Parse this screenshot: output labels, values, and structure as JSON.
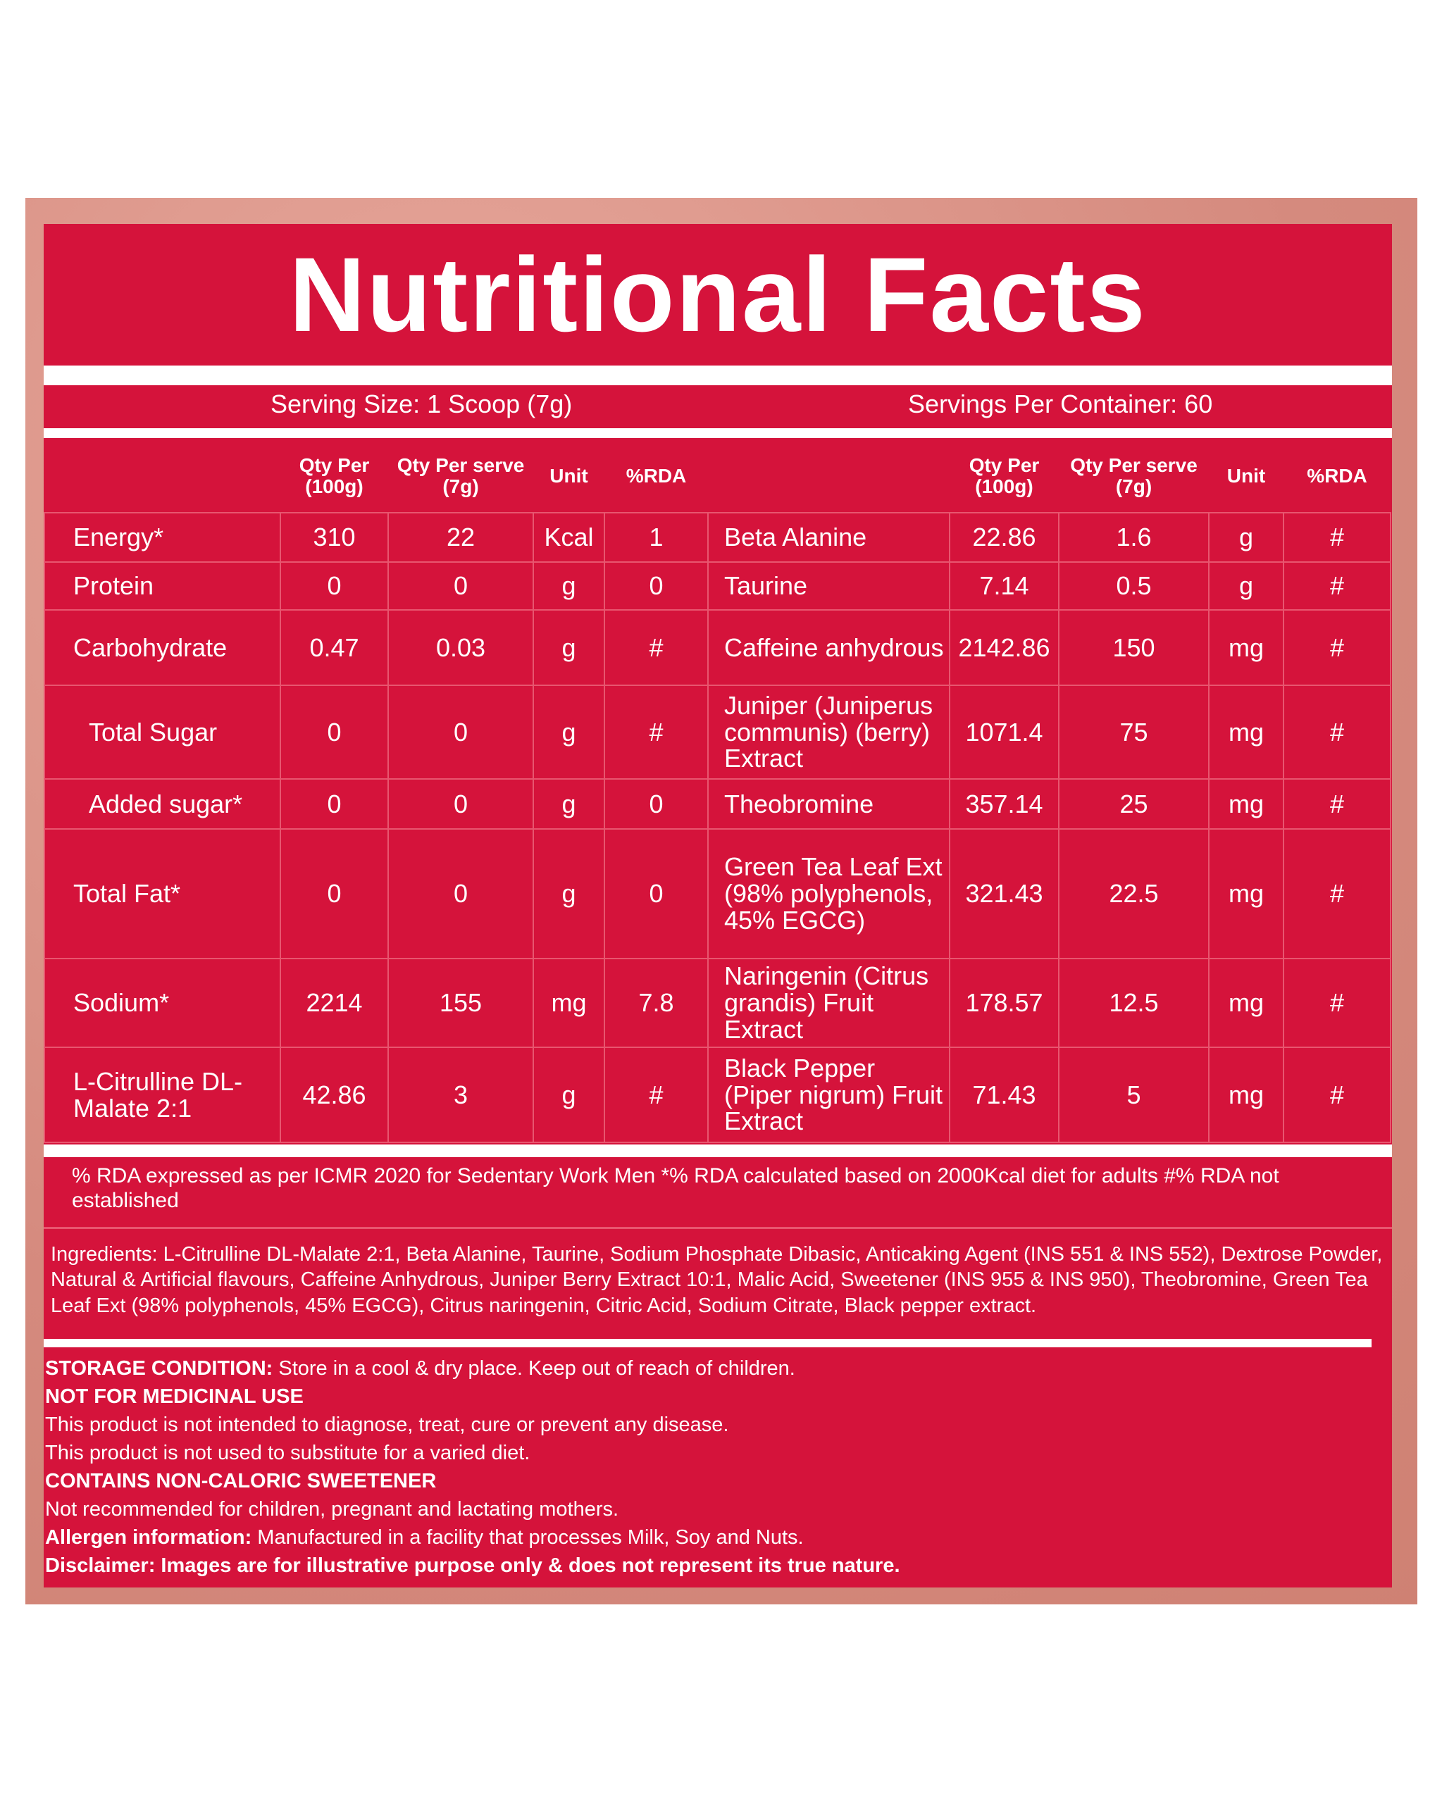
{
  "title": "Nutritional Facts",
  "serving": {
    "size": "Serving Size: 1 Scoop (7g)",
    "per_container": "Servings Per Container: 60"
  },
  "table": {
    "header": [
      "",
      "Qty Per (100g)",
      "Qty Per serve (7g)",
      "Unit",
      "%RDA",
      "",
      "Qty Per (100g)",
      "Qty Per serve (7g)",
      "Unit",
      "%RDA"
    ],
    "rows": [
      [
        "Energy*",
        "310",
        "22",
        "Kcal",
        "1",
        "Beta Alanine",
        "22.86",
        "1.6",
        "g",
        "#"
      ],
      [
        "Protein",
        "0",
        "0",
        "g",
        "0",
        "Taurine",
        "7.14",
        "0.5",
        "g",
        "#"
      ],
      [
        "Carbohydrate",
        "0.47",
        "0.03",
        "g",
        "#",
        "Caffeine anhydrous",
        "2142.86",
        "150",
        "mg",
        "#"
      ],
      [
        "Total Sugar",
        "0",
        "0",
        "g",
        "#",
        "Juniper (Juniperus communis) (berry) Extract",
        "1071.4",
        "75",
        "mg",
        "#"
      ],
      [
        "Added sugar*",
        "0",
        "0",
        "g",
        "0",
        "Theobromine",
        "357.14",
        "25",
        "mg",
        "#"
      ],
      [
        "Total Fat*",
        "0",
        "0",
        "g",
        "0",
        "Green Tea Leaf Ext (98% polyphenols, 45% EGCG)",
        "321.43",
        "22.5",
        "mg",
        "#"
      ],
      [
        "Sodium*",
        "2214",
        "155",
        "mg",
        "7.8",
        "Naringenin (Citrus grandis) Fruit Extract",
        "178.57",
        "12.5",
        "mg",
        "#"
      ],
      [
        "L-Citrulline DL-Malate 2:1",
        "42.86",
        "3",
        "g",
        "#",
        "Black Pepper (Piper nigrum) Fruit Extract",
        "71.43",
        "5",
        "mg",
        "#"
      ]
    ]
  },
  "footnote": "% RDA expressed as per ICMR 2020 for Sedentary Work Men  *% RDA calculated based on 2000Kcal diet for adults  #% RDA not established",
  "ingredients": "Ingredients: L-Citrulline DL-Malate 2:1, Beta Alanine, Taurine, Sodium Phosphate Dibasic, Anticaking Agent (INS 551 & INS 552), Dextrose Powder, Natural & Artificial flavours, Caffeine Anhydrous, Juniper Berry Extract 10:1, Malic Acid, Sweetener (INS 955 & INS 950), Theobromine, Green Tea Leaf Ext (98% polyphenols, 45% EGCG), Citrus naringenin, Citric Acid, Sodium Citrate, Black pepper extract.",
  "notes": [
    {
      "bold": "STORAGE CONDITION:",
      "text": "Store in a cool & dry place. Keep out of reach of children."
    },
    {
      "bold": "NOT FOR MEDICINAL USE"
    },
    {
      "text": "This product is not intended to diagnose, treat, cure or prevent any disease."
    },
    {
      "text": "This product is not used to substitute for a varied diet."
    },
    {
      "bold": "CONTAINS NON-CALORIC SWEETENER"
    },
    {
      "text": "Not recommended for children, pregnant and lactating mothers."
    },
    {
      "bold": "Allergen information:",
      "text": "Manufactured in a facility that processes Milk, Soy and Nuts."
    },
    {
      "bold": "Disclaimer: Images are for illustrative purpose only & does not represent its true nature."
    }
  ]
}
